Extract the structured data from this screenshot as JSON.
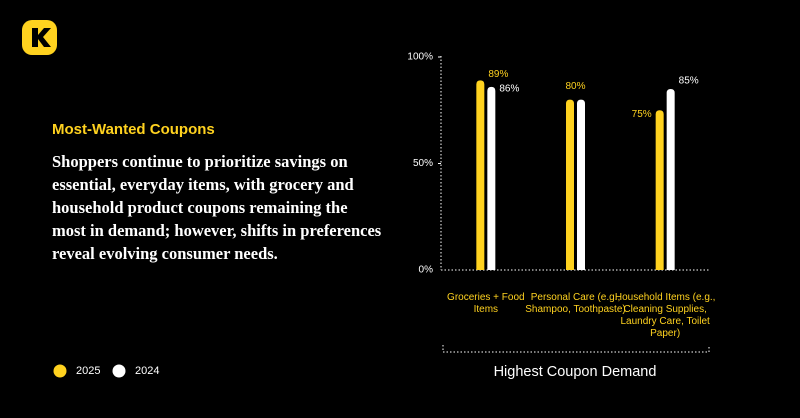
{
  "heading": "Most-Wanted Coupons",
  "body": "Shoppers continue to prioritize savings on essential, everyday items, with grocery and household product coupons remaining the most in demand; however, shifts in preferences reveal evolving consumer needs.",
  "chart_data": {
    "type": "bar",
    "x_label": "Highest Coupon Demand",
    "categories": [
      "Groceries + Food Items",
      "Personal Care (e.g., Shampoo, Toothpaste)",
      "Household Items (e.g., Cleaning Supplies, Laundry Care, Toilet Paper)"
    ],
    "series": [
      {
        "name": "2025",
        "color": "#FFD21F",
        "values": [
          89,
          80,
          75
        ],
        "value_labels": [
          "89%",
          "80%",
          "75%"
        ]
      },
      {
        "name": "2024",
        "color": "#FFFFFF",
        "values": [
          86,
          80,
          85
        ],
        "value_labels": [
          "86%",
          null,
          "85%"
        ]
      }
    ],
    "ylim": [
      0,
      100
    ],
    "yticks": [
      {
        "value": 0,
        "label": "0%"
      },
      {
        "value": 50,
        "label": "50%"
      },
      {
        "value": 100,
        "label": "100%"
      }
    ]
  }
}
